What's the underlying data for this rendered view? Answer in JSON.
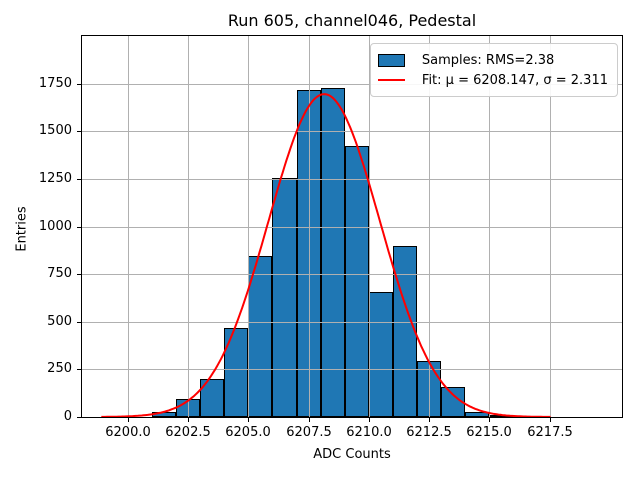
{
  "figure": {
    "title": "Run 605, channel046, Pedestal"
  },
  "axes": {
    "xlabel": "ADC Counts",
    "ylabel": "Entries",
    "x_tick_labels": [
      "6200.0",
      "6202.5",
      "6205.0",
      "6207.5",
      "6210.0",
      "6212.5",
      "6215.0",
      "6217.5"
    ],
    "y_tick_labels": [
      "0",
      "250",
      "500",
      "750",
      "1000",
      "1250",
      "1500",
      "1750"
    ]
  },
  "legend": {
    "entries": [
      {
        "swatch": "histogram-patch",
        "label": "Samples: RMS=2.38"
      },
      {
        "swatch": "fit-line",
        "label": "Fit: μ = 6208.147, σ = 2.311"
      }
    ]
  },
  "colors": {
    "bar_fill": "#1f77b4",
    "bar_edge": "#000000",
    "fit_line": "#ff0000",
    "grid": "#b0b0b0",
    "legend_border": "#cccccc"
  },
  "chart_data": {
    "type": "bar",
    "subtype": "histogram",
    "title": "Run 605, channel046, Pedestal",
    "xlabel": "ADC Counts",
    "ylabel": "Entries",
    "bin_edges": [
      6201,
      6202,
      6203,
      6204,
      6205,
      6206,
      6207,
      6208,
      6209,
      6210,
      6211,
      6212,
      6213,
      6214,
      6215,
      6216,
      6217
    ],
    "counts": [
      25,
      95,
      200,
      465,
      845,
      1255,
      1715,
      1725,
      1420,
      655,
      900,
      295,
      160,
      25,
      10,
      5
    ],
    "x_ticks": [
      6200.0,
      6202.5,
      6205.0,
      6207.5,
      6210.0,
      6212.5,
      6215.0,
      6217.5
    ],
    "y_ticks": [
      0,
      250,
      500,
      750,
      1000,
      1250,
      1500,
      1750
    ],
    "xlim": [
      6198.1,
      6220.5
    ],
    "ylim": [
      0,
      2000
    ],
    "grid": true,
    "grid_above_bars": true,
    "legend_position": "upper right",
    "sample_rms": 2.38,
    "fit": {
      "type": "gaussian",
      "mu": 6208.147,
      "sigma": 2.311,
      "amplitude": 1695,
      "x_range": [
        6198.9,
        6217.6
      ]
    }
  }
}
